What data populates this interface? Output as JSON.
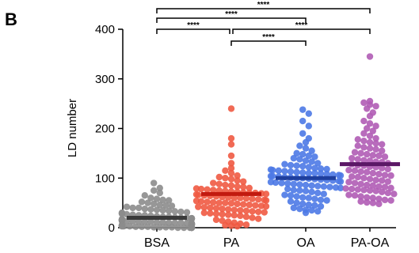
{
  "panel_label": "B",
  "chart_data": {
    "type": "scatter",
    "ylabel": "LD number",
    "xlabel": "",
    "ylim": [
      0,
      400
    ],
    "yticks": [
      0,
      100,
      200,
      300,
      400
    ],
    "categories": [
      "BSA",
      "PA",
      "OA",
      "PA-OA"
    ],
    "series": [
      {
        "name": "BSA",
        "color": "#8c8c8c",
        "mean_color": "#3a3a3a",
        "mean": 20,
        "values": [
          90,
          80,
          75,
          70,
          65,
          60,
          58,
          56,
          55,
          52,
          50,
          48,
          46,
          45,
          44,
          42,
          40,
          40,
          38,
          37,
          36,
          35,
          34,
          33,
          32,
          31,
          30,
          30,
          29,
          28,
          27,
          26,
          25,
          25,
          24,
          23,
          22,
          22,
          21,
          20,
          20,
          19,
          19,
          18,
          18,
          17,
          17,
          16,
          16,
          15,
          15,
          15,
          14,
          14,
          13,
          13,
          12,
          12,
          12,
          11,
          11,
          10,
          10,
          10,
          9,
          9,
          8,
          8,
          8,
          7,
          7,
          6,
          6,
          6,
          5,
          5,
          5,
          4,
          4,
          4,
          3,
          3,
          3,
          2,
          2,
          2,
          1,
          1,
          1,
          1,
          0,
          0,
          0,
          0,
          0,
          0,
          0,
          0,
          0,
          0
        ]
      },
      {
        "name": "PA",
        "color": "#f05a43",
        "mean_color": "#c21a0f",
        "mean": 68,
        "values": [
          240,
          180,
          168,
          145,
          130,
          120,
          115,
          110,
          105,
          102,
          100,
          98,
          95,
          93,
          90,
          88,
          86,
          85,
          83,
          82,
          80,
          79,
          78,
          77,
          76,
          75,
          74,
          73,
          72,
          71,
          70,
          70,
          69,
          68,
          67,
          66,
          65,
          64,
          63,
          62,
          61,
          60,
          60,
          59,
          58,
          57,
          56,
          55,
          54,
          53,
          52,
          51,
          50,
          50,
          49,
          48,
          47,
          46,
          45,
          44,
          43,
          42,
          41,
          40,
          39,
          38,
          37,
          36,
          35,
          34,
          33,
          32,
          31,
          30,
          29,
          28,
          27,
          26,
          25,
          24,
          22,
          20,
          18,
          16,
          14,
          12,
          10,
          8,
          6,
          5,
          4,
          3
        ]
      },
      {
        "name": "OA",
        "color": "#4d79e6",
        "mean_color": "#1f3f9e",
        "mean": 100,
        "values": [
          238,
          230,
          215,
          205,
          190,
          180,
          172,
          165,
          160,
          155,
          150,
          148,
          145,
          143,
          140,
          138,
          135,
          133,
          130,
          128,
          126,
          125,
          124,
          122,
          120,
          119,
          118,
          117,
          116,
          115,
          114,
          113,
          112,
          111,
          110,
          110,
          109,
          108,
          107,
          106,
          105,
          104,
          104,
          103,
          102,
          101,
          100,
          100,
          99,
          98,
          97,
          96,
          95,
          94,
          93,
          92,
          91,
          90,
          89,
          88,
          87,
          86,
          85,
          84,
          83,
          82,
          81,
          80,
          78,
          76,
          75,
          74,
          72,
          70,
          68,
          66,
          65,
          63,
          61,
          60,
          58,
          56,
          55,
          53,
          50,
          48,
          46,
          45,
          43,
          40,
          38,
          36,
          35,
          33,
          30
        ]
      },
      {
        "name": "PA-OA",
        "color": "#b05cb5",
        "mean_color": "#5b1866",
        "mean": 128,
        "values": [
          345,
          255,
          252,
          248,
          245,
          240,
          232,
          225,
          215,
          210,
          205,
          200,
          195,
          190,
          185,
          180,
          178,
          175,
          172,
          170,
          168,
          165,
          162,
          160,
          158,
          155,
          152,
          150,
          148,
          146,
          145,
          143,
          140,
          138,
          136,
          135,
          133,
          132,
          130,
          128,
          126,
          125,
          123,
          122,
          120,
          118,
          116,
          115,
          113,
          112,
          110,
          108,
          106,
          105,
          103,
          102,
          100,
          98,
          96,
          95,
          93,
          92,
          90,
          88,
          86,
          85,
          83,
          82,
          80,
          79,
          78,
          77,
          76,
          75,
          74,
          72,
          70,
          68,
          66,
          65,
          63,
          61,
          60,
          58,
          56,
          55,
          53,
          51,
          50,
          48
        ]
      }
    ],
    "significance": [
      {
        "from": "BSA",
        "to": "PA",
        "label": "****"
      },
      {
        "from": "PA",
        "to": "OA",
        "label": "****"
      },
      {
        "from": "PA",
        "to": "PA-OA",
        "label": "****"
      },
      {
        "from": "BSA",
        "to": "OA",
        "label": "****"
      },
      {
        "from": "BSA",
        "to": "PA-OA",
        "label": "****"
      }
    ]
  }
}
